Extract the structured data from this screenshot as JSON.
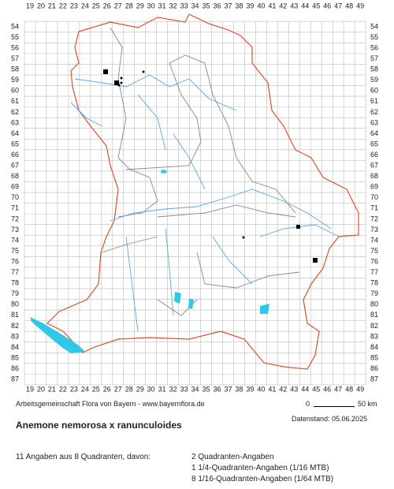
{
  "map": {
    "columns": [
      19,
      20,
      21,
      22,
      23,
      24,
      25,
      26,
      27,
      28,
      29,
      30,
      31,
      32,
      33,
      34,
      35,
      36,
      37,
      38,
      39,
      40,
      41,
      42,
      43,
      44,
      45,
      46,
      47,
      48,
      49
    ],
    "rows": [
      54,
      55,
      56,
      57,
      58,
      59,
      60,
      61,
      62,
      63,
      64,
      65,
      66,
      67,
      68,
      69,
      70,
      71,
      72,
      73,
      74,
      75,
      76,
      77,
      78,
      79,
      80,
      81,
      82,
      83,
      84,
      85,
      86,
      87
    ],
    "credit": "Arbeitsgemeinschaft Flora von Bayern - www.bayernflora.de",
    "scale_start": "0",
    "scale_end": "50 km",
    "date": "Datenstand: 05.06.2025"
  },
  "species": "Anemone nemorosa x ranunculoides",
  "summary": "11 Angaben aus 8 Quadranten, davon:",
  "breakdown": [
    "2 Quadranten-Angaben",
    "1 1/4-Quadranten-Angaben (1/16 MTB)",
    "8 1/16-Quadranten-Angaben (1/64 MTB)"
  ]
}
